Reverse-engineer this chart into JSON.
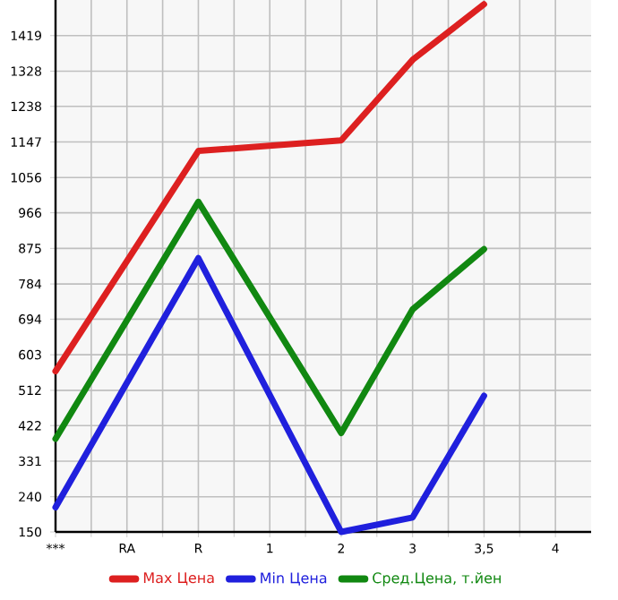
{
  "chart_data": {
    "type": "line",
    "categories": [
      "***",
      "RA",
      "R",
      "1",
      "2",
      "3",
      "3,5",
      "4"
    ],
    "series": [
      {
        "name": "Max Цена",
        "color": "#dd2020",
        "values": [
          561,
          null,
          1124,
          null,
          1151,
          1357,
          1499,
          null
        ]
      },
      {
        "name": "Min Цена",
        "color": "#2020dd",
        "values": [
          213,
          null,
          850,
          null,
          150,
          187,
          498,
          null
        ]
      },
      {
        "name": "Сред.Цена, т.йен",
        "color": "#118811",
        "values": [
          388,
          null,
          994,
          null,
          403,
          719,
          873,
          null
        ]
      }
    ],
    "ylim": [
      150,
      1510
    ],
    "yticks": [
      150,
      240,
      331,
      422,
      512,
      603,
      694,
      784,
      875,
      966,
      1056,
      1147,
      1238,
      1328,
      1419
    ],
    "grid": true,
    "legend": "bottom",
    "marker": "none",
    "line_style": "solid"
  }
}
